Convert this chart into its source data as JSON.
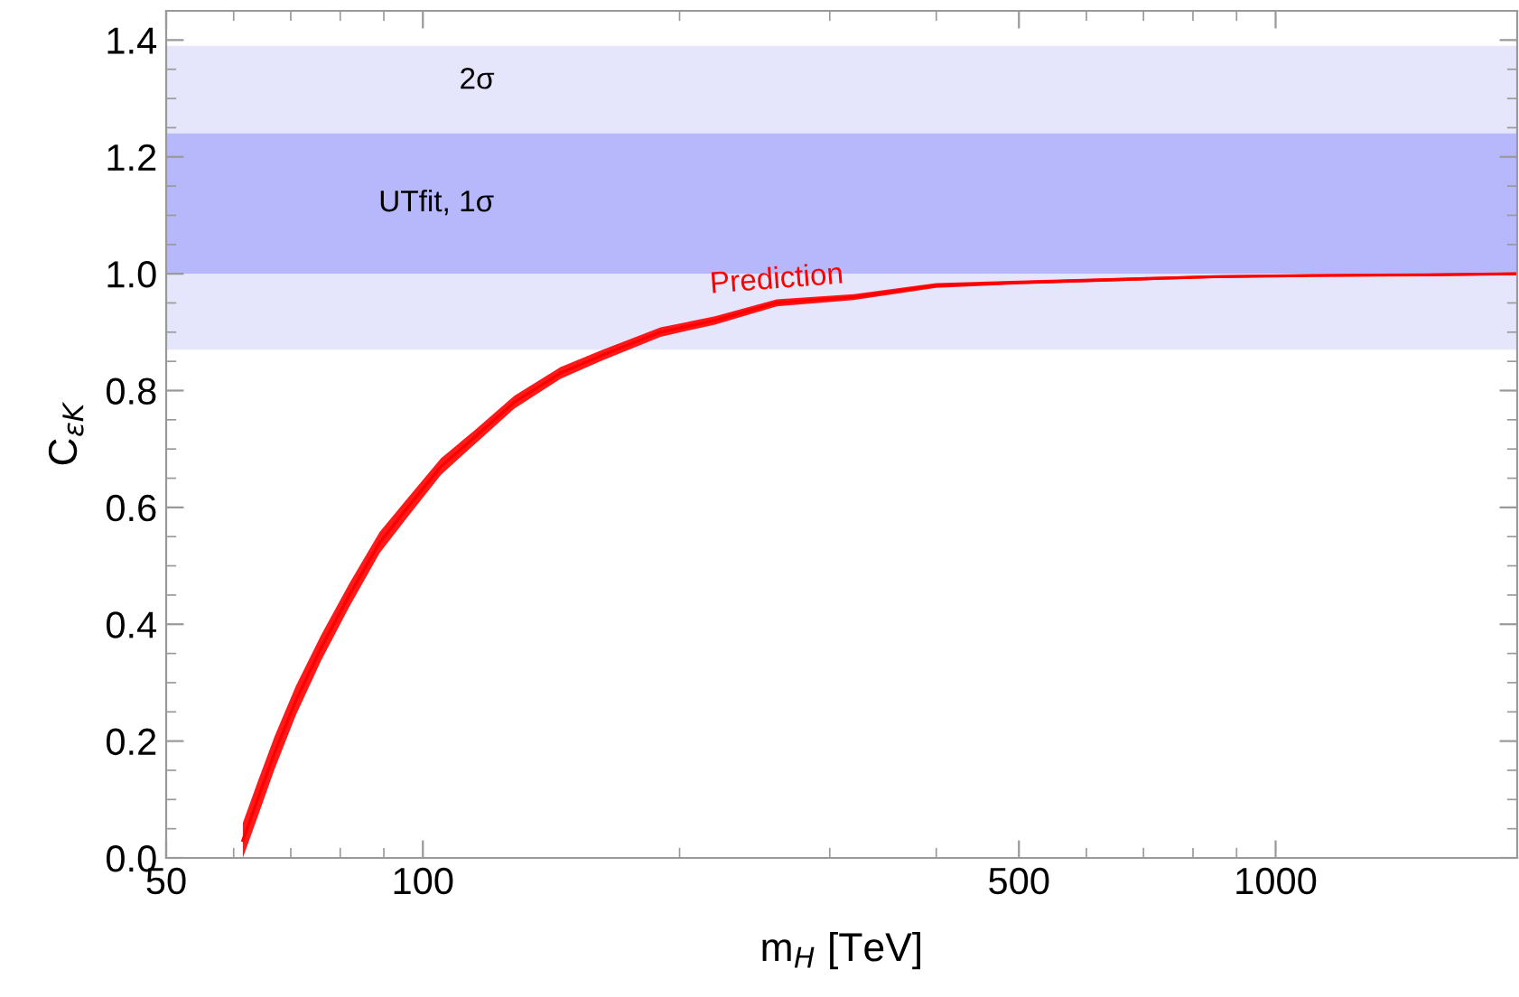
{
  "chart_data": {
    "type": "line",
    "xlabel": "m$_{H}$ [TeV]",
    "ylabel": "C$_{εK}$",
    "log": "x",
    "grid": false,
    "legend": false,
    "marker": "none",
    "line_style": "solid",
    "xlim": [
      50,
      1920
    ],
    "ylim": [
      0,
      1.45
    ],
    "xticks": [
      50,
      100,
      500,
      1000,
      {
        "value": 60,
        "label": null
      },
      {
        "value": 70,
        "label": null
      },
      {
        "value": 80,
        "label": null
      },
      {
        "value": 90,
        "label": null
      },
      {
        "value": 200,
        "label": null
      },
      {
        "value": 300,
        "label": null
      },
      {
        "value": 400,
        "label": null
      },
      {
        "value": 600,
        "label": null
      },
      {
        "value": 700,
        "label": null
      },
      {
        "value": 800,
        "label": null
      },
      {
        "value": 900,
        "label": null
      }
    ],
    "yticks": [
      {
        "value": 0,
        "label": "0.0"
      },
      {
        "value": 0.2,
        "label": "0.2"
      },
      {
        "value": 0.4,
        "label": "0.4"
      },
      {
        "value": 0.6,
        "label": "0.6"
      },
      {
        "value": 0.8,
        "label": "0.8"
      },
      {
        "value": 1.0,
        "label": "1.0"
      },
      {
        "value": 1.2,
        "label": "1.2"
      },
      {
        "value": 1.4,
        "label": "1.4"
      },
      {
        "value": 0.05,
        "label": null
      },
      {
        "value": 0.1,
        "label": null
      },
      {
        "value": 0.15,
        "label": null
      },
      {
        "value": 0.25,
        "label": null
      },
      {
        "value": 0.3,
        "label": null
      },
      {
        "value": 0.35,
        "label": null
      },
      {
        "value": 0.45,
        "label": null
      },
      {
        "value": 0.5,
        "label": null
      },
      {
        "value": 0.55,
        "label": null
      },
      {
        "value": 0.65,
        "label": null
      },
      {
        "value": 0.7,
        "label": null
      },
      {
        "value": 0.75,
        "label": null
      },
      {
        "value": 0.85,
        "label": null
      },
      {
        "value": 0.9,
        "label": null
      },
      {
        "value": 0.95,
        "label": null
      },
      {
        "value": 1.05,
        "label": null
      },
      {
        "value": 1.1,
        "label": null
      },
      {
        "value": 1.15,
        "label": null
      },
      {
        "value": 1.25,
        "label": null
      },
      {
        "value": 1.3,
        "label": null
      },
      {
        "value": 1.35,
        "label": null
      },
      {
        "value": 1.45,
        "label": null
      }
    ],
    "bands": [
      {
        "axis": "y",
        "from": 0.87,
        "to": 1.39,
        "label": "2σ",
        "color": "#e5e5fc"
      },
      {
        "axis": "y",
        "from": 1.0,
        "to": 1.24,
        "label": "UTfit, 1σ",
        "color": "#b7b7fc"
      }
    ],
    "series": [
      {
        "name": "Prediction",
        "color": "#ff0000",
        "x": [
          61.5,
          64,
          67,
          71,
          76,
          82,
          89,
          96,
          105,
          115,
          128,
          145,
          162,
          190,
          220,
          260,
          320,
          400,
          500,
          650,
          850,
          1100,
          1500,
          1920
        ],
        "values": [
          0.03,
          0.1,
          0.18,
          0.27,
          0.36,
          0.45,
          0.54,
          0.6,
          0.67,
          0.72,
          0.78,
          0.83,
          0.86,
          0.9,
          0.92,
          0.95,
          0.96,
          0.98,
          0.985,
          0.99,
          0.995,
          0.997,
          0.998,
          1.0
        ],
        "lower": [
          0.0,
          0.07,
          0.152,
          0.245,
          0.338,
          0.43,
          0.522,
          0.584,
          0.656,
          0.708,
          0.769,
          0.82,
          0.851,
          0.892,
          0.913,
          0.944,
          0.955,
          0.976,
          0.982,
          0.987,
          0.993,
          0.995,
          0.996,
          0.998
        ],
        "upper": [
          0.06,
          0.13,
          0.208,
          0.295,
          0.382,
          0.47,
          0.558,
          0.616,
          0.684,
          0.732,
          0.791,
          0.84,
          0.869,
          0.908,
          0.927,
          0.956,
          0.965,
          0.984,
          0.988,
          0.993,
          0.997,
          0.999,
          1.0,
          1.002
        ]
      }
    ]
  }
}
